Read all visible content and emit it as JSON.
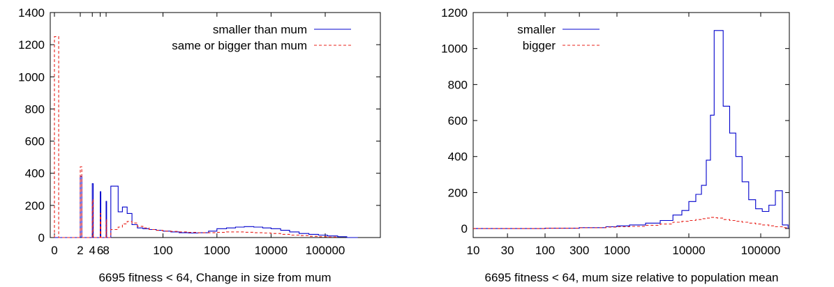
{
  "chart_data": [
    {
      "type": "line",
      "xlabel": "6695 fitness < 64, Change in size from mum",
      "ylabel": "",
      "ylim": [
        0,
        1400
      ],
      "yticks": [
        0,
        200,
        400,
        600,
        800,
        1000,
        1200,
        1400
      ],
      "x_scale": "log(1+x)",
      "xticks": [
        "0",
        "2",
        "4",
        "6",
        "8",
        "100",
        "1000",
        "10000",
        "100000"
      ],
      "xtick_values": [
        0,
        2,
        4,
        6,
        8,
        100,
        1000,
        10000,
        100000
      ],
      "legend": "top-right",
      "series": [
        {
          "name": "smaller than mum",
          "color": "#0000cc",
          "style": "solid",
          "x": [
            0,
            1.8,
            2,
            2.2,
            3.8,
            4,
            4.2,
            5.8,
            6,
            6.2,
            7.8,
            8,
            8.2,
            10,
            14,
            17,
            21,
            26,
            33,
            42,
            55,
            75,
            100,
            140,
            200,
            300,
            450,
            700,
            1000,
            1500,
            2200,
            3200,
            4800,
            7000,
            10000,
            15000,
            22000,
            33000,
            50000,
            75000,
            110000,
            170000,
            250000,
            400000
          ],
          "y": [
            0,
            0,
            380,
            0,
            0,
            335,
            0,
            0,
            285,
            0,
            0,
            225,
            0,
            320,
            160,
            190,
            150,
            80,
            60,
            55,
            50,
            45,
            40,
            35,
            30,
            28,
            30,
            40,
            55,
            60,
            65,
            68,
            65,
            60,
            55,
            45,
            35,
            25,
            20,
            15,
            10,
            5,
            0,
            0
          ]
        },
        {
          "name": "same or bigger than mum",
          "color": "#e8201a",
          "style": "dashed",
          "x": [
            0,
            0.2,
            1.8,
            2,
            2.2,
            3.8,
            4,
            4.2,
            5.8,
            6,
            6.2,
            7.8,
            8,
            8.2,
            10,
            14,
            17,
            21,
            26,
            33,
            42,
            55,
            75,
            100,
            140,
            200,
            300,
            450,
            700,
            1000,
            1500,
            2200,
            3200,
            4800,
            7000,
            10000,
            15000,
            22000,
            33000,
            50000,
            75000,
            110000,
            170000
          ],
          "y": [
            1250,
            0,
            0,
            440,
            0,
            0,
            235,
            0,
            0,
            150,
            0,
            0,
            110,
            0,
            50,
            65,
            85,
            100,
            90,
            70,
            60,
            50,
            45,
            40,
            38,
            35,
            32,
            30,
            30,
            32,
            35,
            35,
            33,
            30,
            28,
            25,
            20,
            15,
            12,
            8,
            5,
            3,
            0
          ]
        }
      ]
    },
    {
      "type": "line",
      "xlabel": "6695 fitness < 64, mum size relative to population mean",
      "ylabel": "",
      "ylim": [
        -50,
        1200
      ],
      "yticks": [
        0,
        200,
        400,
        600,
        800,
        1000,
        1200
      ],
      "x_scale": "log",
      "xlim": [
        10,
        250000
      ],
      "xticks": [
        "10",
        "30",
        "100",
        "300",
        "1000",
        "10000",
        "100000"
      ],
      "xtick_values": [
        10,
        30,
        100,
        300,
        1000,
        10000,
        100000
      ],
      "legend": "top-left",
      "series": [
        {
          "name": "smaller",
          "color": "#0000cc",
          "style": "solid",
          "x": [
            10,
            30,
            100,
            300,
            700,
            1000,
            1500,
            2500,
            4000,
            6000,
            8000,
            10000,
            12500,
            15000,
            17500,
            20000,
            22500,
            25000,
            30000,
            37000,
            45000,
            55000,
            68000,
            85000,
            105000,
            130000,
            160000,
            200000,
            240000
          ],
          "y": [
            0,
            0,
            2,
            5,
            10,
            15,
            20,
            30,
            45,
            75,
            100,
            150,
            190,
            240,
            380,
            630,
            1100,
            1100,
            680,
            530,
            400,
            260,
            160,
            110,
            95,
            130,
            210,
            20,
            0
          ]
        },
        {
          "name": "bigger",
          "color": "#e8201a",
          "style": "dashed",
          "x": [
            10,
            30,
            100,
            300,
            700,
            1000,
            1500,
            2500,
            4000,
            6000,
            8000,
            10000,
            12500,
            15000,
            17500,
            20000,
            22500,
            25000,
            30000,
            37000,
            45000,
            55000,
            68000,
            85000,
            105000,
            130000,
            160000,
            200000,
            240000
          ],
          "y": [
            0,
            0,
            2,
            4,
            8,
            10,
            12,
            18,
            25,
            35,
            40,
            45,
            50,
            55,
            58,
            62,
            60,
            58,
            50,
            45,
            40,
            35,
            30,
            25,
            20,
            15,
            10,
            5,
            0
          ]
        }
      ]
    }
  ]
}
